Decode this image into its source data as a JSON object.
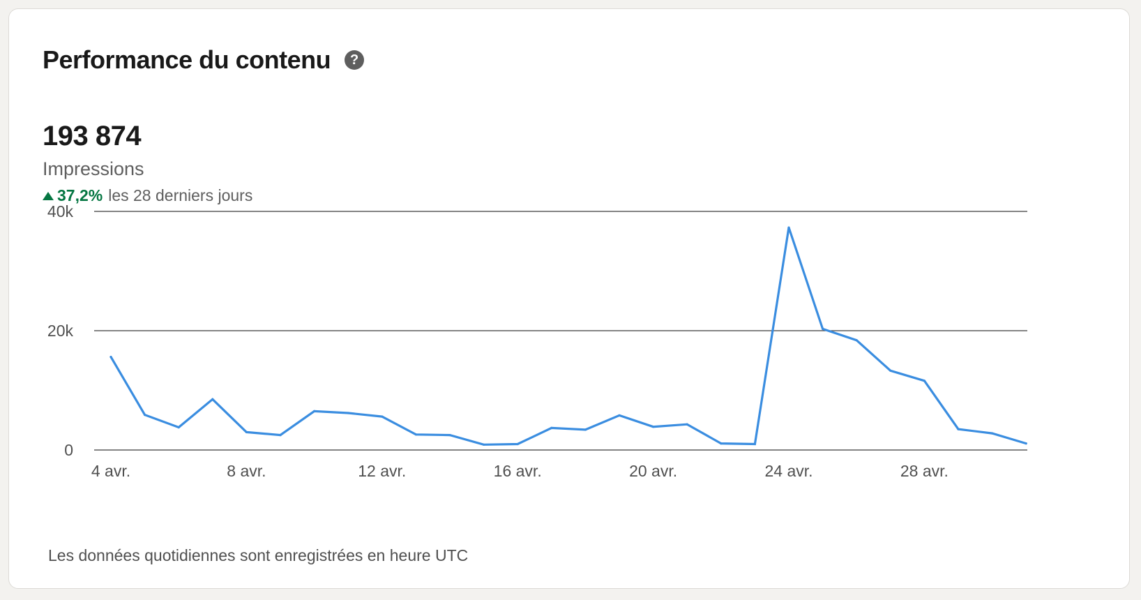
{
  "header": {
    "title": "Performance du contenu",
    "help_icon": "question-circle-icon"
  },
  "metric": {
    "value": "193 874",
    "label": "Impressions",
    "change_icon": "triangle-up-icon",
    "change_percent": "37,2%",
    "change_period": "les 28 derniers jours"
  },
  "footnote": "Les données quotidiennes sont enregistrées en heure UTC",
  "colors": {
    "line": "#3a8de0",
    "positive": "#057642",
    "grid": "#3a3a3a"
  },
  "chart_data": {
    "type": "line",
    "ylim": [
      0,
      40000
    ],
    "y_ticks": [
      {
        "value": 40000,
        "label": "40k"
      },
      {
        "value": 20000,
        "label": "20k"
      },
      {
        "value": 0,
        "label": "0"
      }
    ],
    "x_tick_labels": [
      {
        "day": 4,
        "label": "4 avr."
      },
      {
        "day": 8,
        "label": "8 avr."
      },
      {
        "day": 12,
        "label": "12 avr."
      },
      {
        "day": 16,
        "label": "16 avr."
      },
      {
        "day": 20,
        "label": "20 avr."
      },
      {
        "day": 24,
        "label": "24 avr."
      },
      {
        "day": 28,
        "label": "28 avr."
      }
    ],
    "x": [
      4,
      5,
      6,
      7,
      8,
      9,
      10,
      11,
      12,
      13,
      14,
      15,
      16,
      17,
      18,
      19,
      20,
      21,
      22,
      23,
      24,
      25,
      26,
      27,
      28,
      29,
      30,
      31
    ],
    "series": [
      {
        "values": [
          15600,
          5900,
          3800,
          8500,
          3000,
          2500,
          6500,
          6200,
          5600,
          2600,
          2500,
          900,
          1000,
          3700,
          3400,
          5800,
          3900,
          4300,
          1100,
          1000,
          37300,
          20300,
          18400,
          13300,
          11600,
          3500,
          2800,
          1100
        ]
      }
    ],
    "grid": true,
    "legend": "none"
  }
}
